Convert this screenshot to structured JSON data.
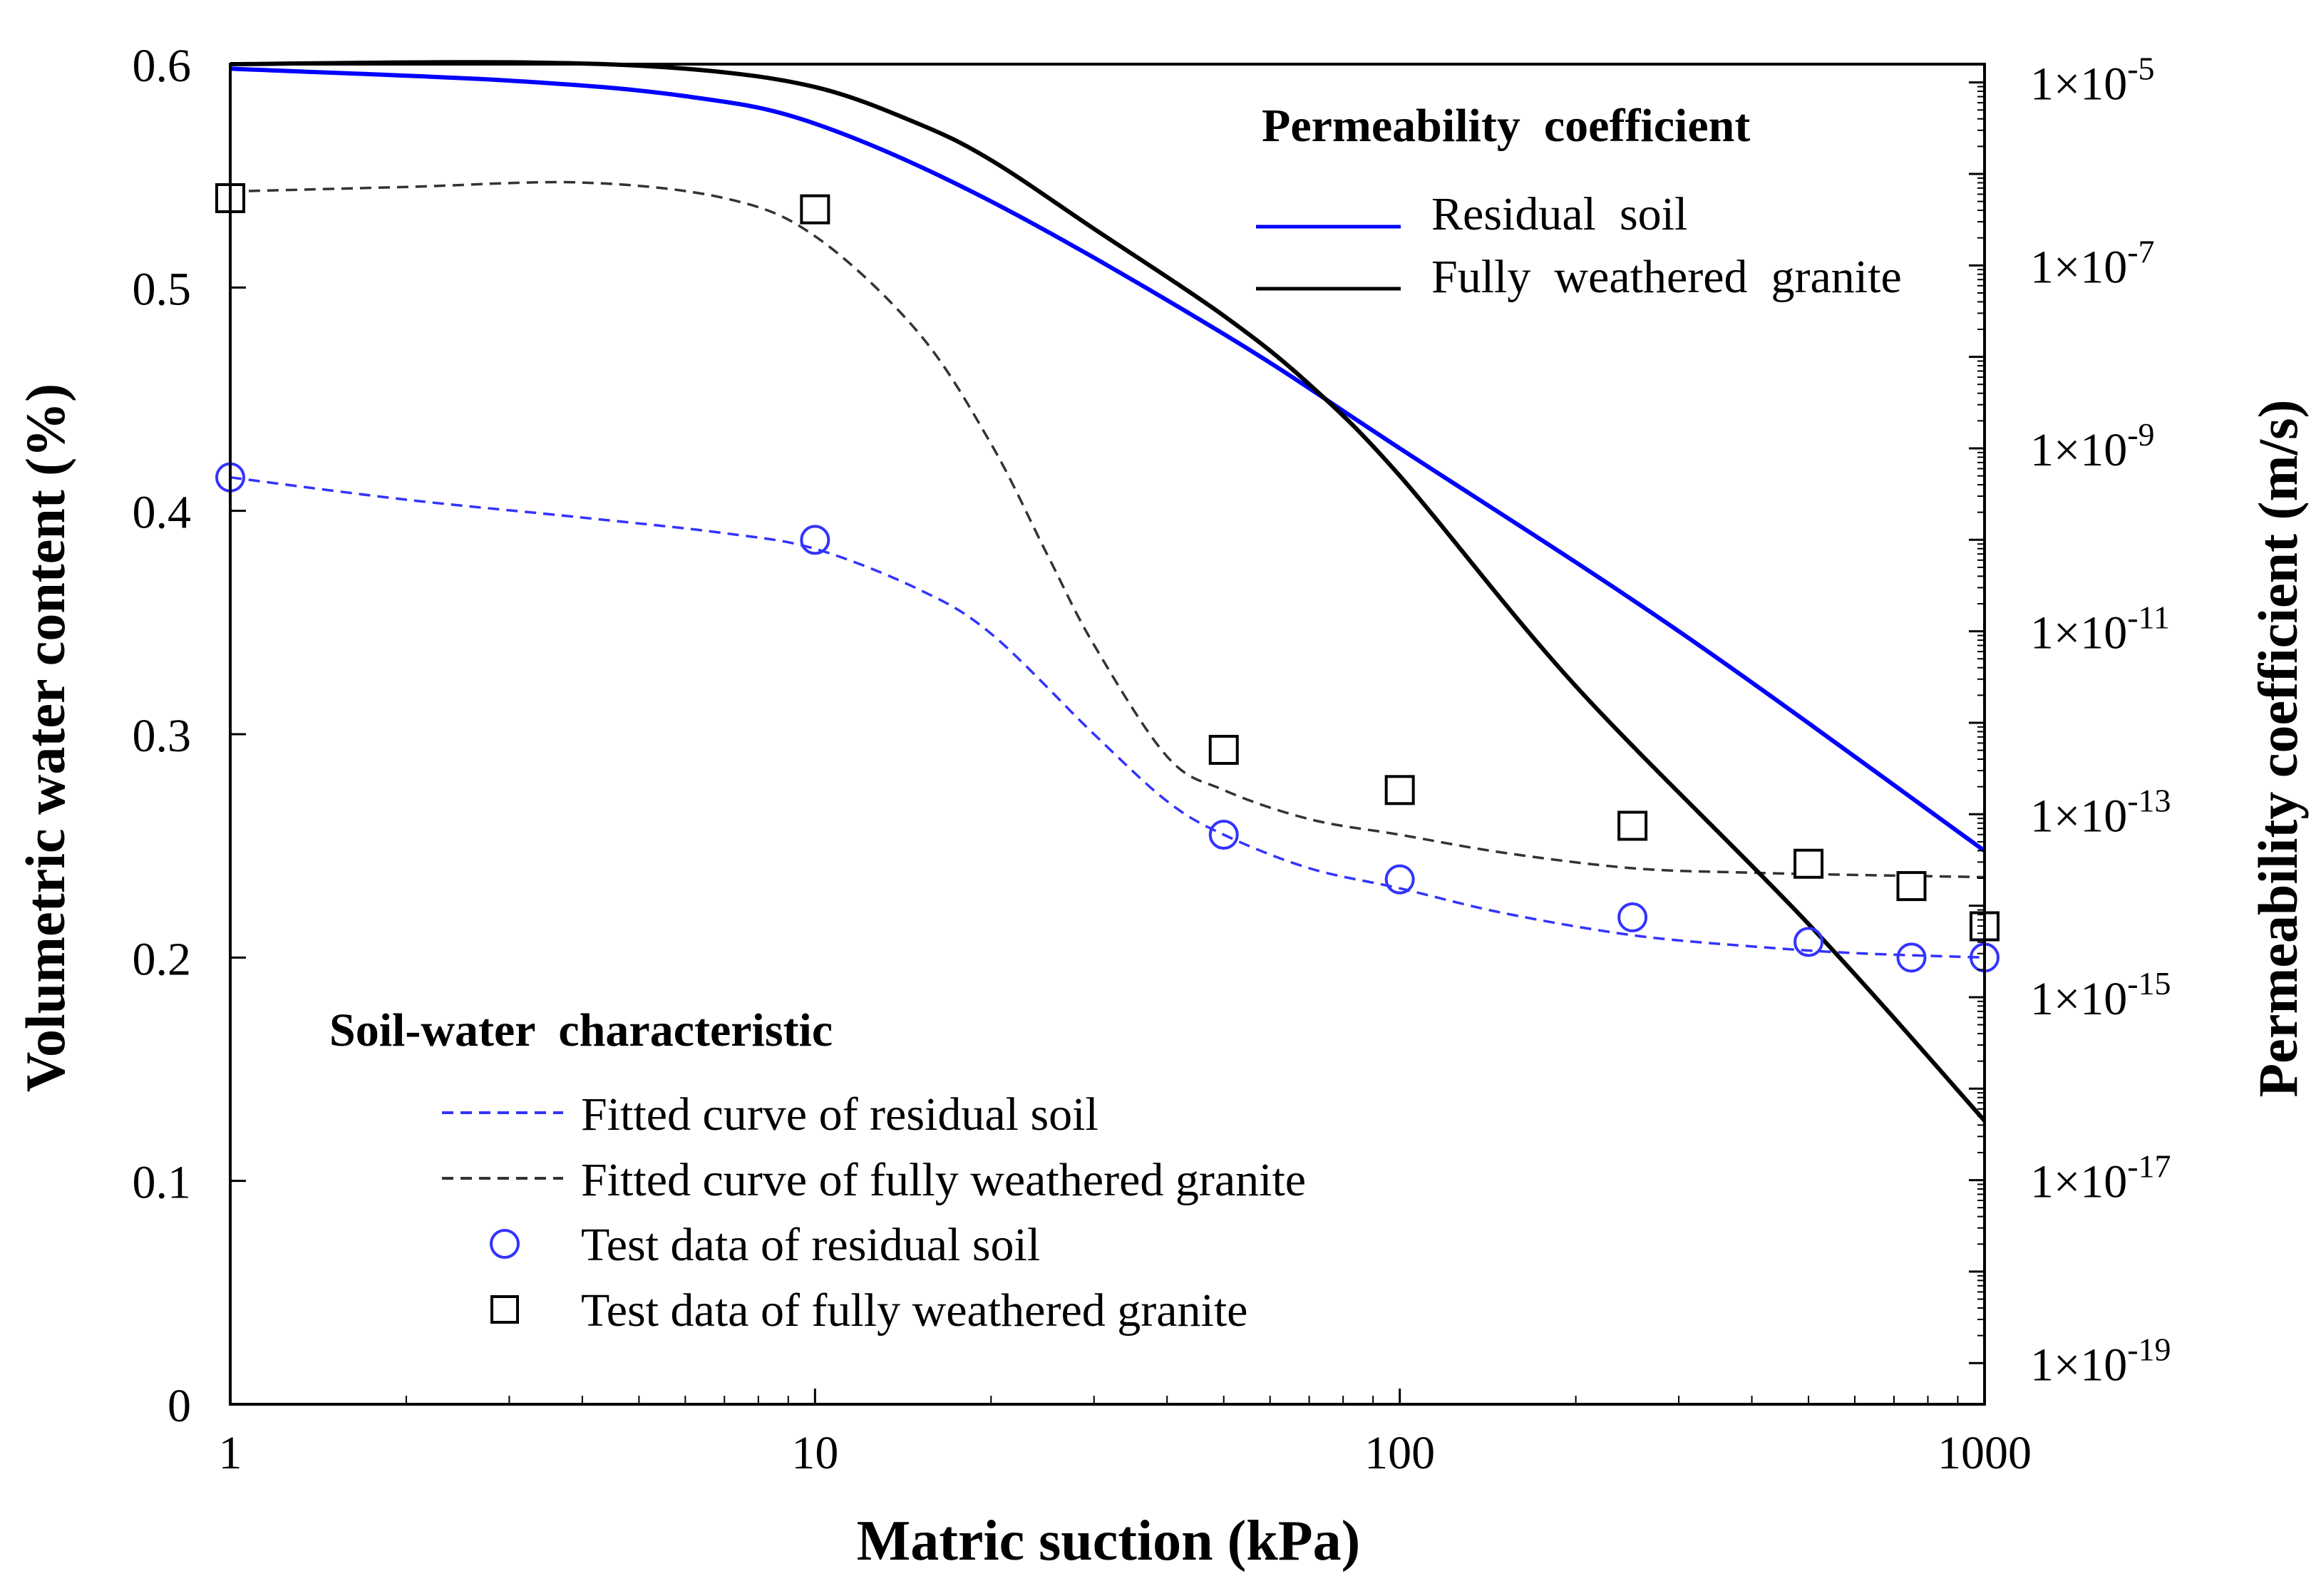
{
  "chart_data": {
    "type": "line",
    "xlabel": "Matric suction (kPa)",
    "ylabel": "Volumetric water content (%)",
    "y2label": "Permeability coefficient (m/s)",
    "xscale": "log",
    "xlim": [
      1,
      1000
    ],
    "ylim": [
      0,
      0.6
    ],
    "y2scale": "log",
    "y2lim_exp": [
      -19.45,
      -4.8
    ],
    "x_ticks": [
      "1",
      "10",
      "100",
      "1000"
    ],
    "y_ticks": [
      "0",
      "0.1",
      "0.2",
      "0.3",
      "0.4",
      "0.5",
      "0.6"
    ],
    "y2_ticks": [
      {
        "base": "1×10",
        "exp": "-5",
        "v": -5
      },
      {
        "base": "1×10",
        "exp": "-7",
        "v": -7
      },
      {
        "base": "1×10",
        "exp": "-9",
        "v": -9
      },
      {
        "base": "1×10",
        "exp": "-11",
        "v": -11
      },
      {
        "base": "1×10",
        "exp": "-13",
        "v": -13
      },
      {
        "base": "1×10",
        "exp": "-15",
        "v": -15
      },
      {
        "base": "1×10",
        "exp": "-17",
        "v": -17
      },
      {
        "base": "1×10",
        "exp": "-19",
        "v": -19
      }
    ],
    "legend_permeability": {
      "title": "Permeability  coefficient",
      "placement": "top-right",
      "entries": [
        "Residual  soil",
        "Fully  weathered  granite"
      ]
    },
    "legend_swcc": {
      "title": "Soil-water  characteristic",
      "placement": "bottom-left",
      "entries": [
        "Fitted curve of residual soil",
        "Fitted curve of fully weathered granite",
        "Test data of residual soil",
        "Test data of fully weathered granite"
      ]
    },
    "series": [
      {
        "name": "Fitted curve of residual soil",
        "axis": "left",
        "style": "dashed",
        "color": "#3333ff",
        "x": [
          1,
          2,
          4,
          7,
          10,
          15,
          20,
          30,
          40,
          50,
          70,
          100,
          150,
          250,
          400,
          600,
          1000
        ],
        "y": [
          0.415,
          0.405,
          0.397,
          0.39,
          0.383,
          0.365,
          0.345,
          0.3,
          0.27,
          0.255,
          0.24,
          0.231,
          0.22,
          0.21,
          0.205,
          0.202,
          0.2
        ]
      },
      {
        "name": "Fitted curve of fully weathered granite",
        "axis": "left",
        "style": "dashed",
        "color": "#333333",
        "x": [
          1,
          2,
          4,
          7,
          10,
          15,
          20,
          25,
          30,
          40,
          50,
          70,
          100,
          150,
          250,
          400,
          600,
          1000
        ],
        "y": [
          0.543,
          0.545,
          0.547,
          0.54,
          0.523,
          0.48,
          0.43,
          0.38,
          0.34,
          0.29,
          0.275,
          0.262,
          0.255,
          0.247,
          0.24,
          0.238,
          0.237,
          0.236
        ]
      },
      {
        "name": "Test data of residual soil",
        "axis": "left",
        "marker": "circle",
        "color": "#3333ff",
        "x": [
          1,
          10,
          50,
          100,
          250,
          500,
          750,
          1000
        ],
        "y": [
          0.415,
          0.387,
          0.255,
          0.235,
          0.218,
          0.207,
          0.2,
          0.2
        ]
      },
      {
        "name": "Test data of fully weathered granite",
        "axis": "left",
        "marker": "square",
        "color": "#000000",
        "x": [
          1,
          10,
          50,
          100,
          250,
          500,
          750,
          1000
        ],
        "y": [
          0.54,
          0.535,
          0.293,
          0.275,
          0.259,
          0.242,
          0.232,
          0.214
        ]
      },
      {
        "name": "Residual  soil",
        "axis": "right",
        "style": "solid",
        "color": "#0000ff",
        "x": [
          1,
          3,
          6,
          10,
          20,
          50,
          100,
          300,
          1000
        ],
        "log10_k": [
          -4.85,
          -4.98,
          -5.15,
          -5.45,
          -6.3,
          -7.75,
          -9.0,
          -11.0,
          -13.4
        ]
      },
      {
        "name": "Fully  weathered  granite",
        "axis": "right",
        "style": "solid",
        "color": "#000000",
        "x": [
          1,
          3,
          6,
          10,
          15,
          20,
          30,
          50,
          70,
          100,
          200,
          500,
          1000
        ],
        "log10_k": [
          -4.8,
          -4.78,
          -4.85,
          -5.05,
          -5.45,
          -5.85,
          -6.6,
          -7.55,
          -8.3,
          -9.3,
          -11.6,
          -14.2,
          -16.35
        ]
      }
    ]
  }
}
